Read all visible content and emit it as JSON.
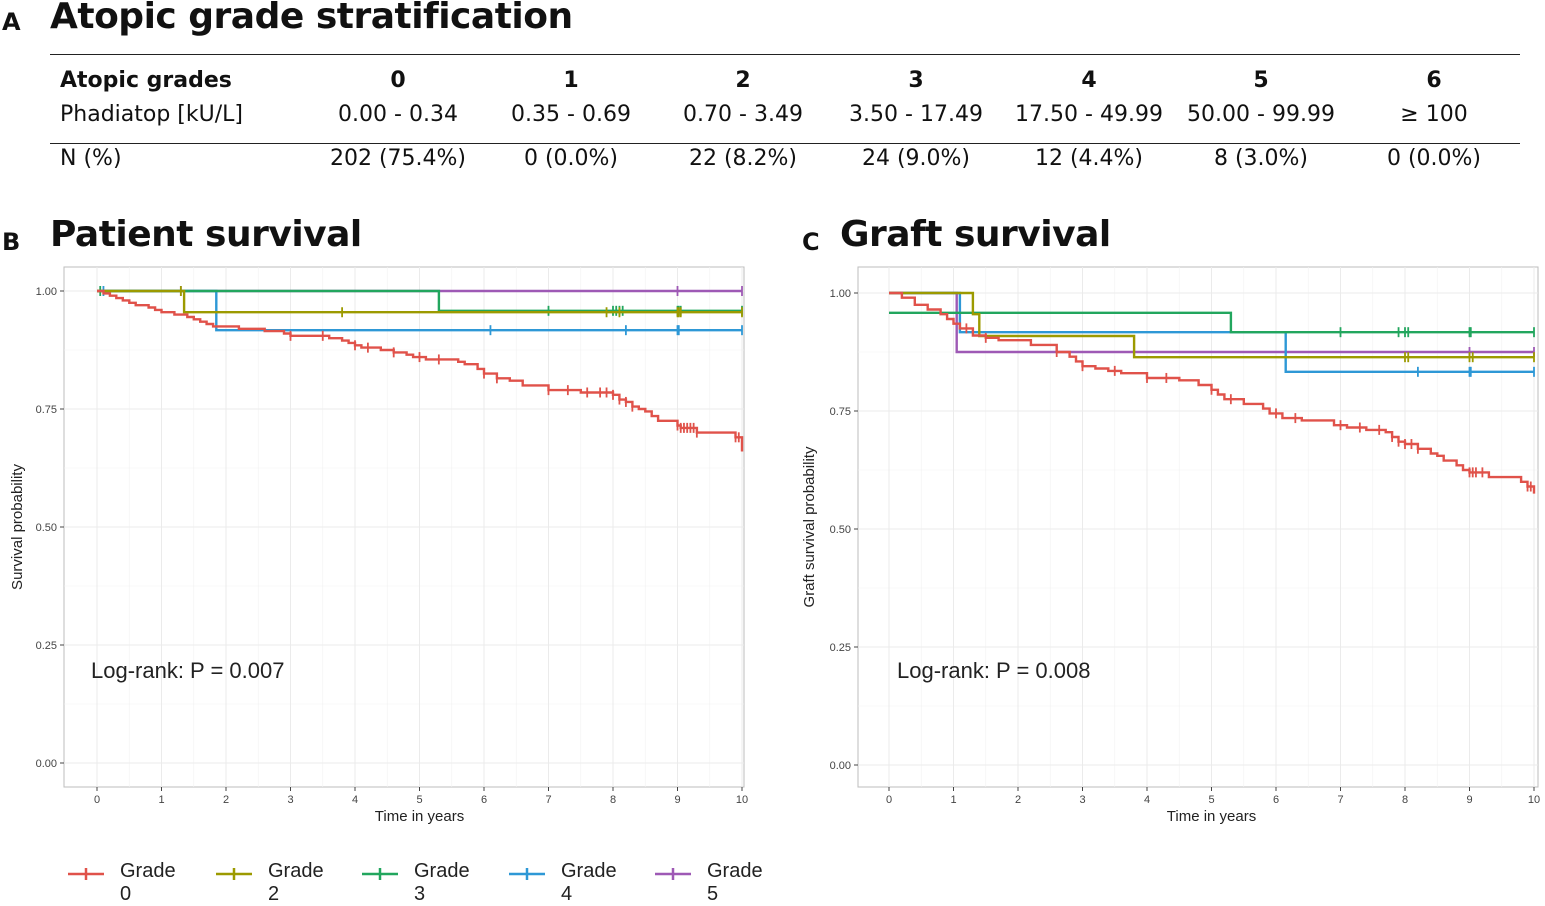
{
  "panel_a": {
    "letter": "A",
    "title": "Atopic grade stratification",
    "header_label_1": "Atopic grades",
    "header_label_2": "Phadiatop [kU/L]",
    "row_label": "N (%)",
    "columns": [
      {
        "grade": "0",
        "range": "0.00 - 0.34",
        "n": "202  (75.4%)"
      },
      {
        "grade": "1",
        "range": "0.35 - 0.69",
        "n": "0  (0.0%)"
      },
      {
        "grade": "2",
        "range": "0.70 - 3.49",
        "n": "22  (8.2%)"
      },
      {
        "grade": "3",
        "range": "3.50 - 17.49",
        "n": "24  (9.0%)"
      },
      {
        "grade": "4",
        "range": "17.50 - 49.99",
        "n": "12  (4.4%)"
      },
      {
        "grade": "5",
        "range": "50.00 - 99.99",
        "n": "8  (3.0%)"
      },
      {
        "grade": "6",
        "range": "≥ 100",
        "n": "0  (0.0%)"
      }
    ]
  },
  "panel_b": {
    "letter": "B",
    "title": "Patient survival"
  },
  "panel_c": {
    "letter": "C",
    "title": "Graft survival"
  },
  "legend": [
    {
      "label": "Grade 0",
      "color": "#F8766D"
    },
    {
      "label": "Grade 2",
      "color": "#A3A500"
    },
    {
      "label": "Grade 3",
      "color": "#00BF7D"
    },
    {
      "label": "Grade 4",
      "color": "#00B0F6"
    },
    {
      "label": "Grade 5",
      "color": "#E76BF3"
    }
  ],
  "chart_data": [
    {
      "type": "line",
      "id": "patient",
      "title": "Patient survival",
      "xlabel": "Time in years",
      "ylabel": "Survival probability",
      "xlim": [
        0,
        10
      ],
      "ylim": [
        0,
        1
      ],
      "xticks": [
        "0",
        "1",
        "2",
        "3",
        "4",
        "5",
        "6",
        "7",
        "8",
        "9",
        "10"
      ],
      "yticks": [
        "0.00",
        "0.25",
        "0.50",
        "0.75",
        "1.00"
      ],
      "annotation": "Log-rank: P = 0.007",
      "series": [
        {
          "name": "Grade 0",
          "color": "#A03030",
          "stroke": "#E0524A",
          "steps": [
            [
              0,
              1.0
            ],
            [
              0.1,
              0.995
            ],
            [
              0.2,
              0.99
            ],
            [
              0.3,
              0.985
            ],
            [
              0.4,
              0.98
            ],
            [
              0.5,
              0.975
            ],
            [
              0.6,
              0.97
            ],
            [
              0.8,
              0.965
            ],
            [
              0.9,
              0.96
            ],
            [
              1.0,
              0.955
            ],
            [
              1.2,
              0.95
            ],
            [
              1.4,
              0.945
            ],
            [
              1.5,
              0.94
            ],
            [
              1.6,
              0.935
            ],
            [
              1.7,
              0.93
            ],
            [
              1.8,
              0.925
            ],
            [
              2.2,
              0.92
            ],
            [
              2.6,
              0.915
            ],
            [
              2.9,
              0.91
            ],
            [
              3.0,
              0.905
            ],
            [
              3.6,
              0.9
            ],
            [
              3.8,
              0.895
            ],
            [
              3.9,
              0.89
            ],
            [
              4.0,
              0.885
            ],
            [
              4.1,
              0.88
            ],
            [
              4.4,
              0.875
            ],
            [
              4.6,
              0.87
            ],
            [
              4.8,
              0.865
            ],
            [
              4.9,
              0.86
            ],
            [
              5.1,
              0.855
            ],
            [
              5.6,
              0.85
            ],
            [
              5.7,
              0.845
            ],
            [
              5.9,
              0.835
            ],
            [
              6.0,
              0.825
            ],
            [
              6.2,
              0.815
            ],
            [
              6.4,
              0.81
            ],
            [
              6.6,
              0.8
            ],
            [
              7.0,
              0.79
            ],
            [
              7.5,
              0.785
            ],
            [
              8.0,
              0.78
            ],
            [
              8.1,
              0.77
            ],
            [
              8.2,
              0.765
            ],
            [
              8.3,
              0.755
            ],
            [
              8.4,
              0.75
            ],
            [
              8.5,
              0.745
            ],
            [
              8.6,
              0.735
            ],
            [
              8.7,
              0.725
            ],
            [
              9.0,
              0.715
            ],
            [
              9.05,
              0.71
            ],
            [
              9.3,
              0.7
            ],
            [
              9.9,
              0.69
            ],
            [
              10,
              0.66
            ]
          ],
          "censors": [
            3.0,
            3.5,
            4.0,
            4.2,
            4.6,
            5.0,
            5.3,
            6.0,
            6.2,
            7.0,
            7.3,
            7.6,
            7.8,
            7.9,
            8.0,
            8.1,
            8.2,
            8.3,
            9.0,
            9.05,
            9.1,
            9.15,
            9.2,
            9.25,
            9.3,
            9.9,
            9.95
          ]
        },
        {
          "name": "Grade 2",
          "color": "#A3A500",
          "stroke": "#9C9A00",
          "steps": [
            [
              0,
              1.0
            ],
            [
              1.35,
              0.955
            ],
            [
              10,
              0.955
            ]
          ],
          "censors": [
            1.3,
            3.8,
            7.9,
            8.1,
            9.0,
            9.02,
            9.05,
            10
          ]
        },
        {
          "name": "Grade 3",
          "color": "#00BF7D",
          "stroke": "#22A65E",
          "steps": [
            [
              0,
              1.0
            ],
            [
              5.3,
              0.958
            ],
            [
              10,
              0.958
            ]
          ],
          "censors": [
            0.05,
            7.0,
            8.0,
            8.05,
            8.1,
            8.15,
            9.0,
            9.02,
            9.05,
            10
          ]
        },
        {
          "name": "Grade 4",
          "color": "#00B0F6",
          "stroke": "#2E98D6",
          "steps": [
            [
              0,
              1.0
            ],
            [
              1.85,
              0.917
            ],
            [
              10,
              0.917
            ]
          ],
          "censors": [
            0.1,
            6.1,
            8.2,
            9.0,
            9.02,
            10
          ]
        },
        {
          "name": "Grade 5",
          "color": "#E76BF3",
          "stroke": "#9E59B5",
          "steps": [
            [
              0,
              1.0
            ],
            [
              10,
              1.0
            ]
          ],
          "censors": [
            1.3,
            9.0,
            10
          ]
        }
      ]
    },
    {
      "type": "line",
      "id": "graft",
      "title": "Graft survival",
      "xlabel": "Time in years",
      "ylabel": "Graft survival probability",
      "xlim": [
        0,
        10
      ],
      "ylim": [
        0,
        1
      ],
      "xticks": [
        "0",
        "1",
        "2",
        "3",
        "4",
        "5",
        "6",
        "7",
        "8",
        "9",
        "10"
      ],
      "yticks": [
        "0.00",
        "0.25",
        "0.50",
        "0.75",
        "1.00"
      ],
      "annotation": "Log-rank: P = 0.008",
      "series": [
        {
          "name": "Grade 0",
          "color": "#A03030",
          "stroke": "#E0524A",
          "steps": [
            [
              0,
              1.0
            ],
            [
              0.2,
              0.99
            ],
            [
              0.4,
              0.975
            ],
            [
              0.6,
              0.965
            ],
            [
              0.8,
              0.955
            ],
            [
              0.9,
              0.945
            ],
            [
              1.0,
              0.935
            ],
            [
              1.1,
              0.925
            ],
            [
              1.3,
              0.91
            ],
            [
              1.5,
              0.905
            ],
            [
              1.7,
              0.9
            ],
            [
              2.2,
              0.89
            ],
            [
              2.6,
              0.875
            ],
            [
              2.8,
              0.865
            ],
            [
              2.9,
              0.855
            ],
            [
              3.0,
              0.845
            ],
            [
              3.2,
              0.84
            ],
            [
              3.4,
              0.835
            ],
            [
              3.6,
              0.83
            ],
            [
              4.0,
              0.82
            ],
            [
              4.5,
              0.815
            ],
            [
              4.8,
              0.805
            ],
            [
              5.0,
              0.795
            ],
            [
              5.1,
              0.785
            ],
            [
              5.2,
              0.775
            ],
            [
              5.5,
              0.765
            ],
            [
              5.8,
              0.755
            ],
            [
              5.9,
              0.745
            ],
            [
              6.1,
              0.735
            ],
            [
              6.4,
              0.73
            ],
            [
              6.9,
              0.72
            ],
            [
              7.1,
              0.715
            ],
            [
              7.4,
              0.71
            ],
            [
              7.7,
              0.705
            ],
            [
              7.8,
              0.695
            ],
            [
              7.9,
              0.685
            ],
            [
              8.0,
              0.68
            ],
            [
              8.2,
              0.67
            ],
            [
              8.4,
              0.66
            ],
            [
              8.5,
              0.655
            ],
            [
              8.6,
              0.645
            ],
            [
              8.8,
              0.635
            ],
            [
              8.9,
              0.625
            ],
            [
              9.0,
              0.62
            ],
            [
              9.3,
              0.61
            ],
            [
              9.8,
              0.6
            ],
            [
              9.9,
              0.59
            ],
            [
              10,
              0.575
            ]
          ],
          "censors": [
            1.2,
            1.5,
            2.6,
            3.0,
            3.5,
            4.0,
            4.3,
            5.0,
            5.3,
            6.0,
            6.3,
            7.0,
            7.3,
            7.6,
            7.8,
            7.9,
            8.0,
            8.1,
            8.2,
            9.0,
            9.05,
            9.1,
            9.2,
            9.9,
            9.95
          ]
        },
        {
          "name": "Grade 2",
          "color": "#A3A500",
          "stroke": "#9C9A00",
          "steps": [
            [
              0,
              1.0
            ],
            [
              1.3,
              0.955
            ],
            [
              1.4,
              0.909
            ],
            [
              3.8,
              0.864
            ],
            [
              10,
              0.864
            ]
          ],
          "censors": [
            8.0,
            8.05,
            9.0,
            9.05,
            10
          ]
        },
        {
          "name": "Grade 3",
          "color": "#00BF7D",
          "stroke": "#22A65E",
          "steps": [
            [
              0,
              0.958
            ],
            [
              5.3,
              0.917
            ],
            [
              10,
              0.917
            ]
          ],
          "censors": [
            7.0,
            7.9,
            8.0,
            8.05,
            9.0,
            9.02,
            10
          ]
        },
        {
          "name": "Grade 4",
          "color": "#00B0F6",
          "stroke": "#2E98D6",
          "steps": [
            [
              0,
              1.0
            ],
            [
              1.1,
              0.917
            ],
            [
              6.15,
              0.833
            ],
            [
              10,
              0.833
            ]
          ],
          "censors": [
            8.2,
            9.0,
            9.02,
            10
          ]
        },
        {
          "name": "Grade 5",
          "color": "#E76BF3",
          "stroke": "#9E59B5",
          "steps": [
            [
              0,
              1.0
            ],
            [
              1.05,
              0.875
            ],
            [
              10,
              0.875
            ]
          ],
          "censors": [
            9.0,
            10
          ]
        }
      ]
    }
  ]
}
